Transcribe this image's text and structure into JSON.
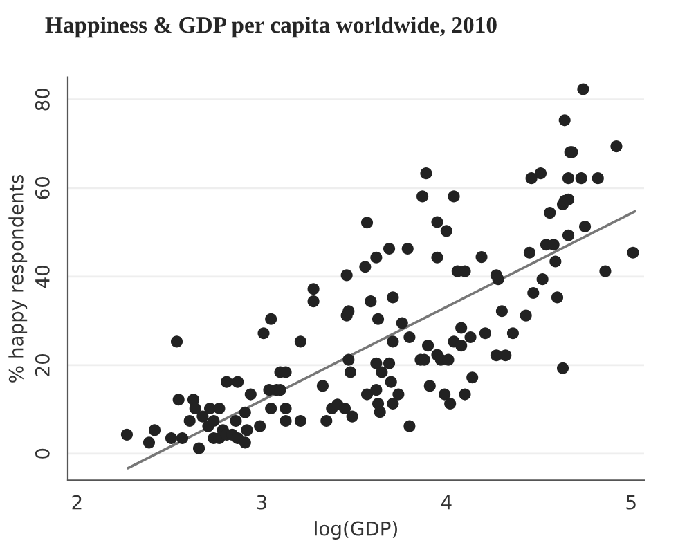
{
  "chart_data": {
    "type": "scatter",
    "title": "Happiness & GDP per capita worldwide, 2010",
    "xlabel": "log(GDP)",
    "ylabel": "% happy respondents",
    "xlim": [
      1.95,
      5.07
    ],
    "ylim": [
      -6,
      85
    ],
    "xticks": [
      2,
      3,
      4,
      5
    ],
    "yticks": [
      0,
      20,
      40,
      60,
      80
    ],
    "grid": "y",
    "series": [
      {
        "marker": "circle",
        "color": "#222222",
        "x": [
          2.27,
          2.39,
          2.42,
          2.51,
          2.54,
          2.55,
          2.57,
          2.61,
          2.63,
          2.64,
          2.66,
          2.68,
          2.71,
          2.72,
          2.74,
          2.74,
          2.77,
          2.77,
          2.79,
          2.81,
          2.81,
          2.84,
          2.86,
          2.87,
          2.87,
          2.91,
          2.91,
          2.92,
          2.94,
          2.99,
          3.01,
          3.04,
          3.05,
          3.05,
          3.08,
          3.1,
          3.1,
          3.13,
          3.13,
          3.13,
          3.21,
          3.21,
          3.28,
          3.28,
          3.33,
          3.35,
          3.38,
          3.41,
          3.45,
          3.46,
          3.46,
          3.47,
          3.47,
          3.48,
          3.49,
          3.56,
          3.57,
          3.57,
          3.59,
          3.62,
          3.63,
          3.62,
          3.62,
          3.63,
          3.64,
          3.65,
          3.69,
          3.69,
          3.7,
          3.71,
          3.71,
          3.71,
          3.74,
          3.76,
          3.79,
          3.8,
          3.8,
          3.86,
          3.87,
          3.88,
          3.89,
          3.9,
          3.91,
          3.95,
          3.95,
          3.95,
          3.97,
          3.99,
          4.0,
          4.01,
          4.02,
          4.04,
          4.04,
          4.06,
          4.08,
          4.08,
          4.1,
          4.1,
          4.13,
          4.14,
          4.19,
          4.21,
          4.27,
          4.27,
          4.28,
          4.3,
          4.32,
          4.36,
          4.43,
          4.45,
          4.46,
          4.47,
          4.51,
          4.52,
          4.54,
          4.56,
          4.58,
          4.59,
          4.6,
          4.63,
          4.63,
          4.64,
          4.64,
          4.66,
          4.66,
          4.66,
          4.67,
          4.68,
          4.73,
          4.74,
          4.75,
          4.82,
          4.86,
          4.92,
          5.01
        ],
        "values": [
          4.3,
          2.5,
          5.3,
          3.5,
          25.3,
          12.2,
          3.5,
          7.4,
          12.2,
          10.2,
          1.2,
          8.4,
          6.2,
          10.2,
          7.4,
          3.5,
          10.2,
          3.5,
          5.3,
          16.2,
          4.3,
          4.3,
          7.4,
          16.2,
          3.5,
          9.3,
          2.5,
          5.3,
          13.4,
          6.2,
          27.2,
          14.4,
          30.4,
          10.2,
          14.4,
          18.4,
          14.4,
          18.4,
          10.2,
          7.4,
          25.3,
          7.4,
          34.4,
          37.2,
          15.3,
          7.4,
          10.2,
          11.1,
          10.2,
          40.3,
          31.2,
          32.2,
          21.2,
          18.4,
          8.4,
          42.2,
          52.2,
          13.4,
          34.4,
          44.3,
          30.4,
          14.4,
          20.4,
          11.3,
          9.4,
          18.4,
          46.3,
          20.4,
          16.2,
          35.3,
          25.3,
          11.3,
          13.4,
          29.5,
          46.3,
          26.3,
          6.2,
          21.2,
          58.1,
          21.2,
          63.3,
          24.4,
          15.3,
          22.3,
          52.3,
          44.3,
          21.2,
          13.4,
          50.3,
          21.2,
          11.3,
          58.1,
          25.3,
          41.2,
          24.4,
          28.4,
          41.2,
          13.4,
          26.3,
          17.2,
          44.4,
          27.2,
          22.2,
          40.3,
          39.4,
          32.2,
          22.2,
          27.2,
          31.2,
          45.4,
          62.2,
          36.3,
          63.3,
          39.4,
          47.2,
          54.4,
          47.2,
          43.4,
          35.3,
          19.3,
          56.3,
          75.3,
          57.1,
          57.4,
          49.3,
          62.2,
          68.1,
          68.1,
          62.2,
          82.3,
          51.3,
          62.2,
          41.2,
          69.4,
          45.4
        ]
      },
      {
        "type": "line",
        "color": "#777777",
        "x": [
          2.275,
          5.02
        ],
        "values": [
          -3.3,
          54.7
        ]
      }
    ]
  }
}
